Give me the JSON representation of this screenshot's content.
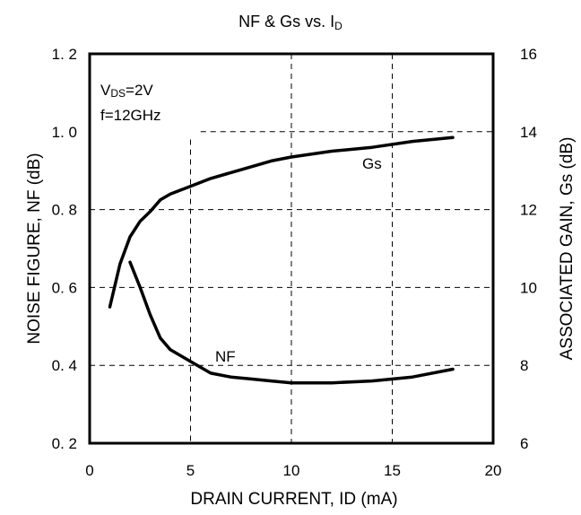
{
  "chart_data": {
    "type": "line",
    "title": "NF & Gs vs. ID",
    "title_parts": {
      "main": "NF & Gs vs. I",
      "sub": "D"
    },
    "xlabel": "DRAIN CURRENT,  ID  (mA)",
    "ylabel": "NOISE FIGURE, NF (dB)",
    "y2label": "ASSOCIATED GAIN, Gs (dB)",
    "xlim": [
      0,
      20
    ],
    "ylim": [
      0.2,
      1.2
    ],
    "y2lim": [
      6,
      16
    ],
    "x_ticks": [
      "0",
      "5",
      "10",
      "15",
      "20"
    ],
    "y_ticks": [
      "0. 2",
      "0. 4",
      "0. 6",
      "0. 8",
      "1. 0",
      "1. 2"
    ],
    "y2_ticks": [
      "6",
      "8",
      "10",
      "12",
      "14",
      "16"
    ],
    "grid": true,
    "conditions": {
      "vds_label": "V",
      "vds_sub": "DS",
      "vds_value": "=2V",
      "freq": "f=12GHz"
    },
    "series": [
      {
        "name": "NF",
        "axis": "left",
        "x": [
          2.0,
          2.5,
          3.0,
          3.5,
          4.0,
          5.0,
          6.0,
          7.0,
          8.0,
          9.0,
          10.0,
          12.0,
          14.0,
          16.0,
          18.0
        ],
        "y": [
          0.665,
          0.6,
          0.53,
          0.47,
          0.44,
          0.41,
          0.38,
          0.37,
          0.365,
          0.36,
          0.355,
          0.355,
          0.36,
          0.37,
          0.39
        ]
      },
      {
        "name": "Gs",
        "axis": "right",
        "x": [
          1.0,
          1.5,
          2.0,
          2.5,
          3.0,
          3.5,
          4.0,
          5.0,
          6.0,
          7.0,
          8.0,
          9.0,
          10.0,
          12.0,
          14.0,
          16.0,
          18.0
        ],
        "y": [
          9.5,
          10.6,
          11.3,
          11.7,
          11.95,
          12.25,
          12.4,
          12.6,
          12.8,
          12.95,
          13.1,
          13.25,
          13.35,
          13.5,
          13.6,
          13.75,
          13.85
        ]
      }
    ]
  }
}
